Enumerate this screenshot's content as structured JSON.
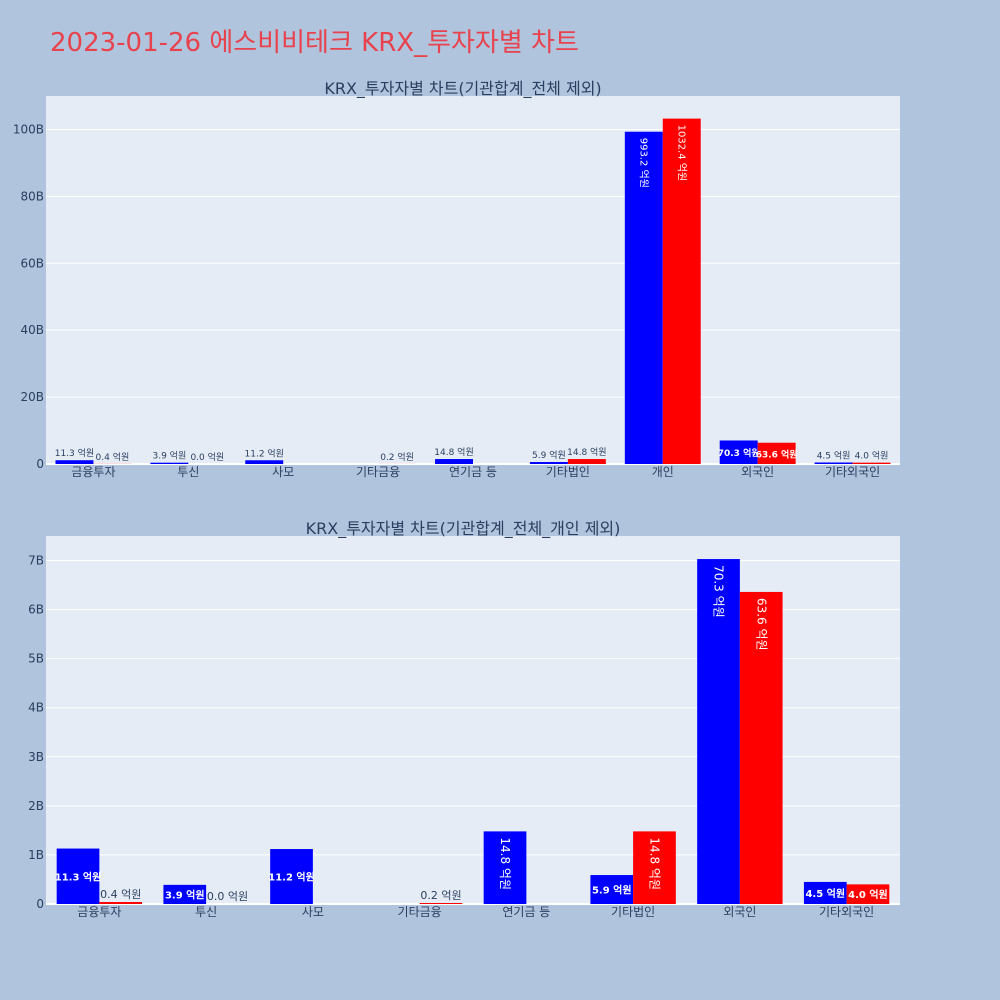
{
  "page": {
    "title": "2023-01-26 에스비비테크 KRX_투자자별 차트",
    "background": "#b0c4de",
    "plot_background": "#e5ecf6",
    "title_color": "#e8434d"
  },
  "chart_data": [
    {
      "type": "bar",
      "title": "KRX_투자자별 차트(기관합계_전체 제외)",
      "categories": [
        "금융투자",
        "투신",
        "사모",
        "기타금융",
        "연기금 등",
        "기타법인",
        "개인",
        "외국인",
        "기타외국인"
      ],
      "ylim": [
        0,
        110
      ],
      "yticks": [
        0,
        20,
        40,
        60,
        80,
        100
      ],
      "ytick_labels": [
        "0",
        "20B",
        "40B",
        "60B",
        "80B",
        "100B"
      ],
      "grid": true,
      "legend": "none",
      "series": [
        {
          "color": "#0000ff",
          "values": [
            1.13,
            0.39,
            1.12,
            0,
            1.48,
            0.59,
            99.32,
            7.03,
            0.45
          ],
          "labels": [
            "11.3 억원",
            "3.9 억원",
            "11.2 억원",
            "",
            "14.8 억원",
            "5.9 억원",
            "993.2 억원",
            "70.3 억원",
            "4.5 억원"
          ]
        },
        {
          "color": "#ff0000",
          "values": [
            0.04,
            0,
            0,
            0.02,
            0,
            1.48,
            103.24,
            6.36,
            0.4
          ],
          "labels": [
            "0.4 억원",
            "0.0 억원",
            "",
            "0.2 억원",
            "",
            "14.8 억원",
            "1032.4 억원",
            "63.6 억원",
            "4.0 억원"
          ]
        }
      ]
    },
    {
      "type": "bar",
      "title": "KRX_투자자별 차트(기관합계_전체_개인 제외)",
      "categories": [
        "금융투자",
        "투신",
        "사모",
        "기타금융",
        "연기금 등",
        "기타법인",
        "외국인",
        "기타외국인"
      ],
      "ylim": [
        0,
        7.5
      ],
      "yticks": [
        0,
        1,
        2,
        3,
        4,
        5,
        6,
        7
      ],
      "ytick_labels": [
        "0",
        "1B",
        "2B",
        "3B",
        "4B",
        "5B",
        "6B",
        "7B"
      ],
      "grid": true,
      "legend": "none",
      "series": [
        {
          "color": "#0000ff",
          "values": [
            1.13,
            0.39,
            1.12,
            0,
            1.48,
            0.59,
            7.03,
            0.45
          ],
          "labels": [
            "11.3 억원",
            "3.9 억원",
            "11.2 억원",
            "",
            "14.8 억원",
            "5.9 억원",
            "70.3 억원",
            "4.5 억원"
          ]
        },
        {
          "color": "#ff0000",
          "values": [
            0.04,
            0,
            0,
            0.02,
            0,
            1.48,
            6.36,
            0.4
          ],
          "labels": [
            "0.4 억원",
            "0.0 억원",
            "",
            "0.2 억원",
            "",
            "14.8 억원",
            "63.6 억원",
            "4.0 억원"
          ]
        }
      ]
    }
  ]
}
